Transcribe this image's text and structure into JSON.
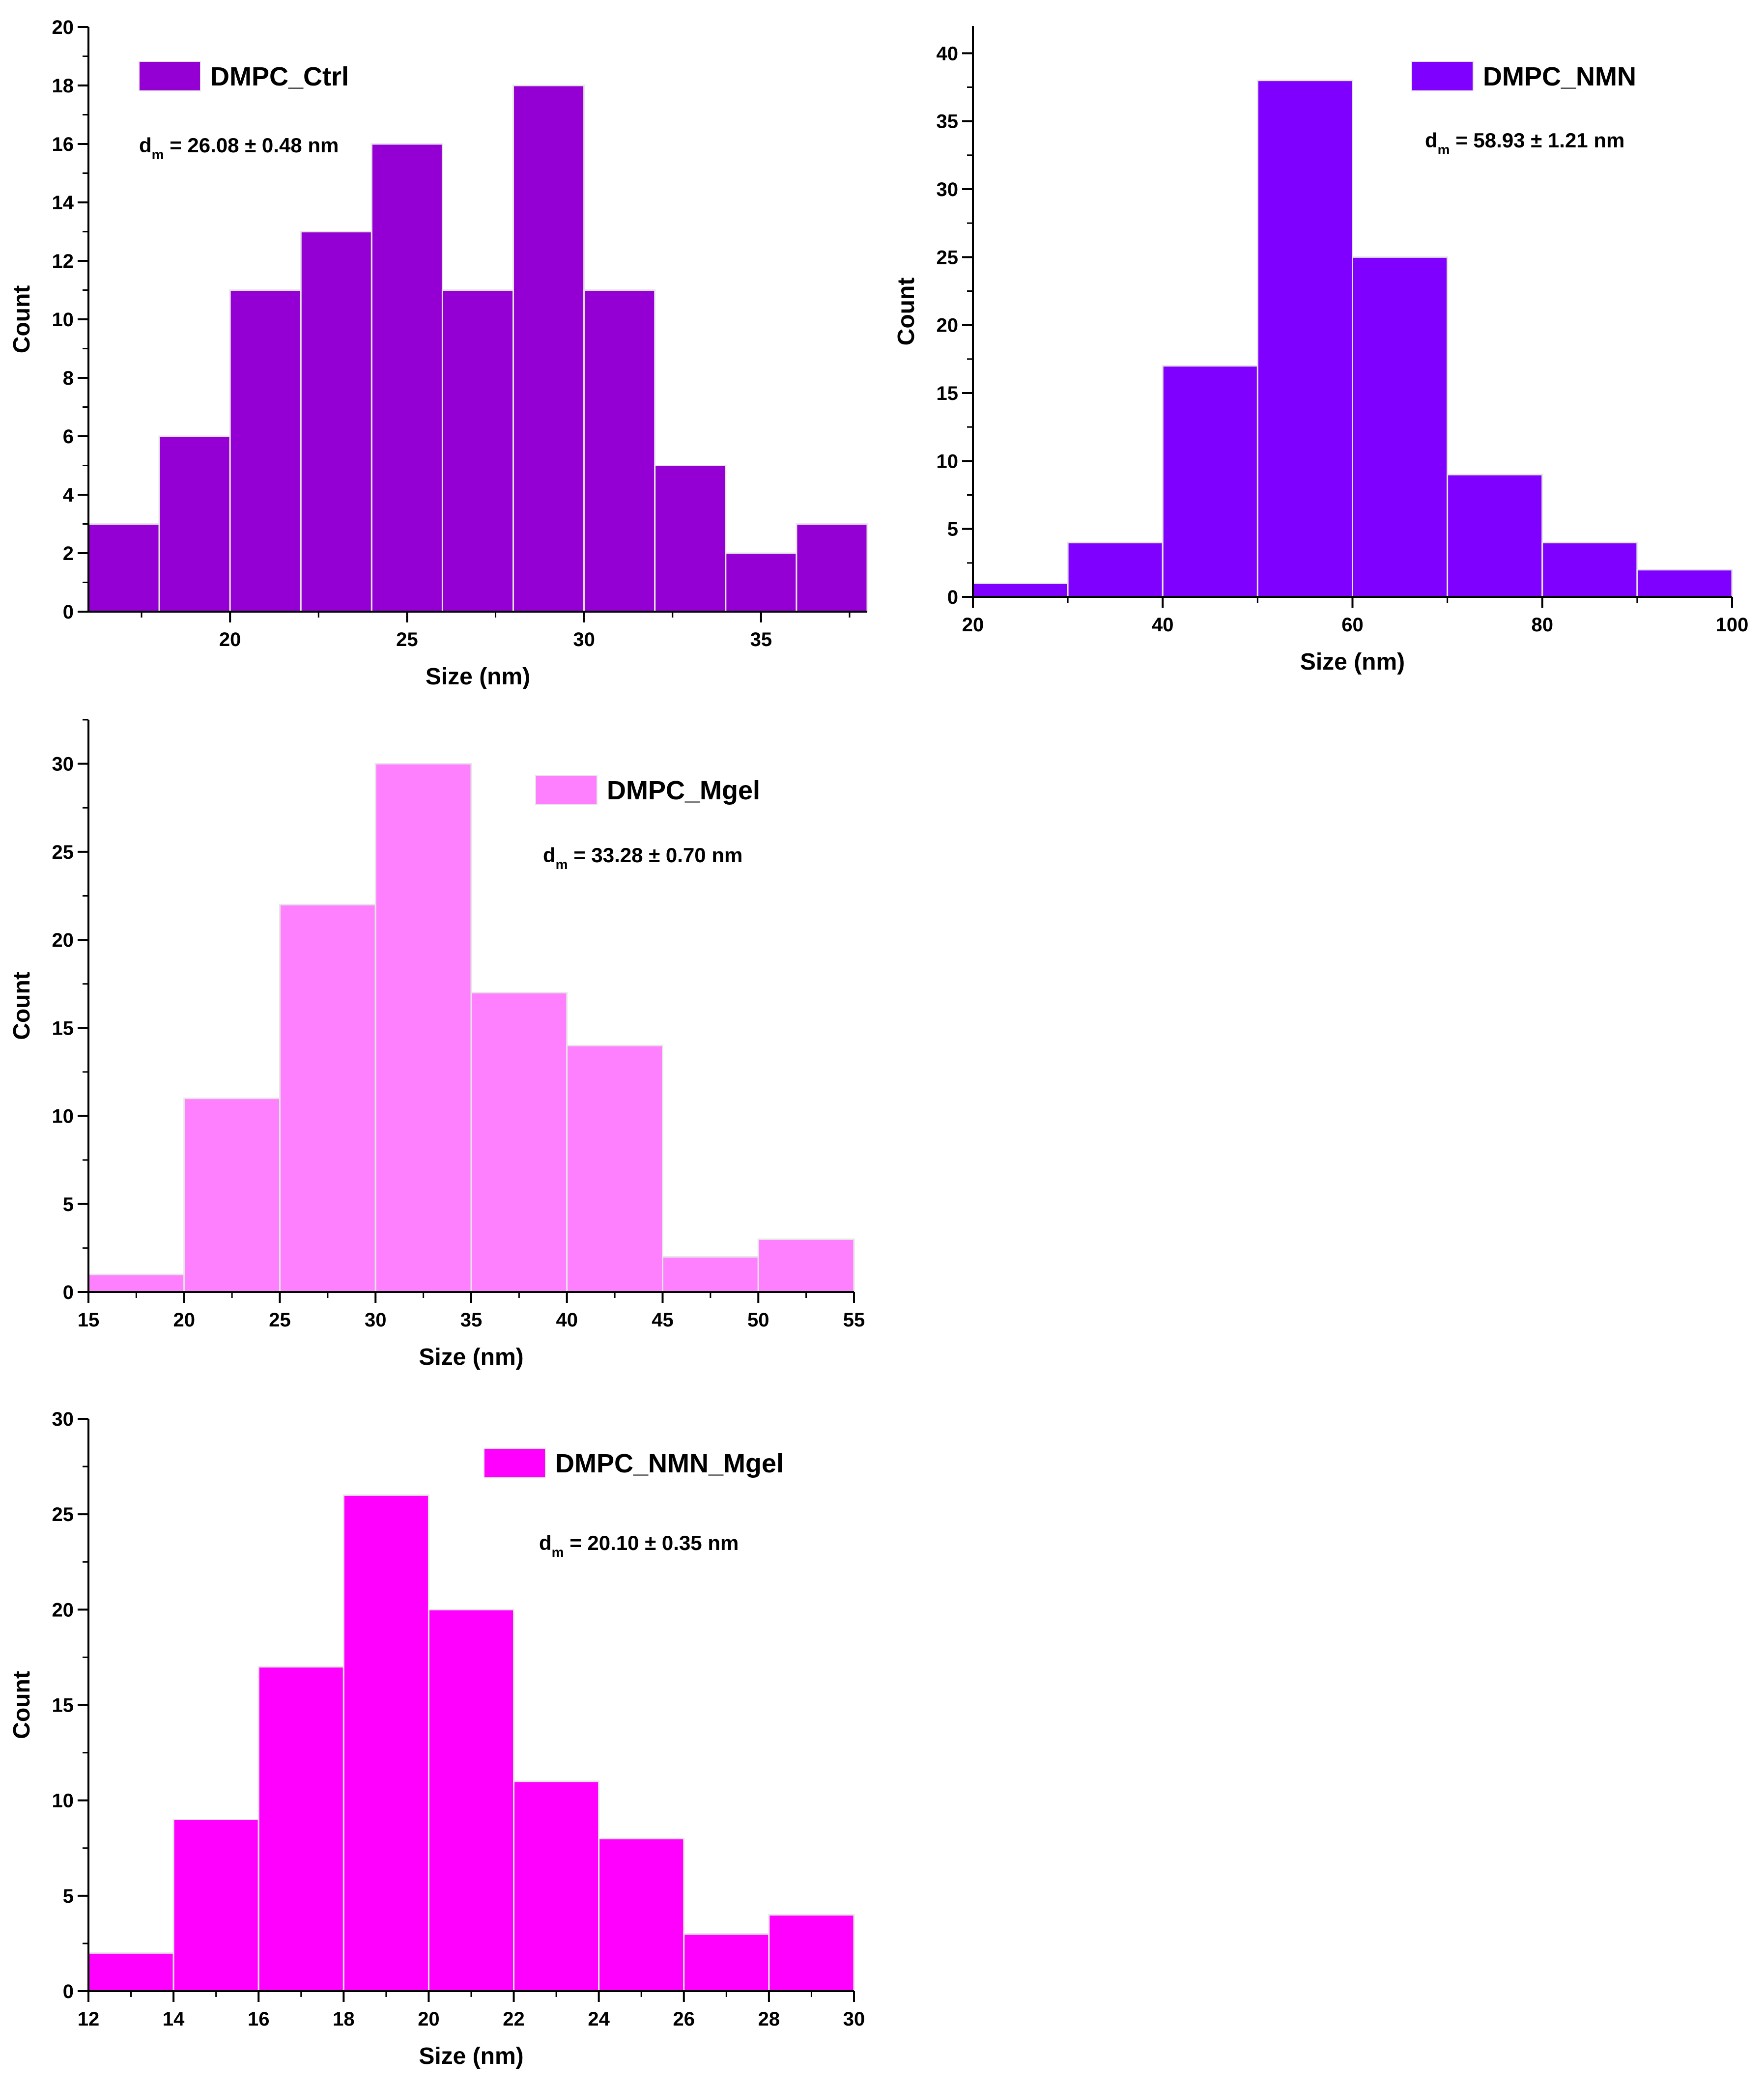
{
  "chart_data": [
    {
      "type": "bar",
      "subtype": "histogram",
      "legend": "DMPC_Ctrl",
      "stat": {
        "prefix": "d",
        "sub": "m",
        "text": " = 26.08 ± 0.48 nm"
      },
      "xlabel": "Size (nm)",
      "ylabel": "Count",
      "xlim": [
        16,
        38
      ],
      "ylim": [
        0,
        20
      ],
      "xticks": [
        20,
        25,
        30,
        35
      ],
      "yticks": [
        0,
        2,
        4,
        6,
        8,
        10,
        12,
        14,
        16,
        18,
        20
      ],
      "bin_edges": [
        16,
        18,
        20,
        22,
        24,
        26,
        28,
        30,
        32,
        34,
        36,
        38
      ],
      "values": [
        3,
        6,
        11,
        13,
        16,
        11,
        18,
        11,
        5,
        2,
        3
      ],
      "color": "#9400D3",
      "legend_position": "top-left"
    },
    {
      "type": "bar",
      "subtype": "histogram",
      "legend": "DMPC_NMN",
      "stat": {
        "prefix": "d",
        "sub": "m",
        "text": " = 58.93 ± 1.21 nm"
      },
      "xlabel": "Size (nm)",
      "ylabel": "Count",
      "xlim": [
        20,
        100
      ],
      "ylim": [
        0,
        42
      ],
      "xticks": [
        20,
        40,
        60,
        80,
        100
      ],
      "yticks": [
        0,
        5,
        10,
        15,
        20,
        25,
        30,
        35,
        40
      ],
      "bin_edges": [
        20,
        30,
        40,
        50,
        60,
        70,
        80,
        90,
        100
      ],
      "values": [
        1,
        4,
        17,
        38,
        25,
        9,
        4,
        2
      ],
      "color": "#8000FF",
      "legend_position": "top-right"
    },
    {
      "type": "bar",
      "subtype": "histogram",
      "legend": "DMPC_Mgel",
      "stat": {
        "prefix": "d",
        "sub": "m",
        "text": " = 33.28 ± 0.70 nm"
      },
      "xlabel": "Size (nm)",
      "ylabel": "Count",
      "xlim": [
        15,
        55
      ],
      "ylim": [
        0,
        32.5
      ],
      "xticks": [
        15,
        20,
        25,
        30,
        35,
        40,
        45,
        50,
        55
      ],
      "yticks": [
        0,
        5,
        10,
        15,
        20,
        25,
        30
      ],
      "bin_edges": [
        15,
        20,
        25,
        30,
        35,
        40,
        45,
        50,
        55
      ],
      "values": [
        1,
        11,
        22,
        30,
        17,
        14,
        2,
        3
      ],
      "color": "#FF80FF",
      "legend_position": "top-right"
    },
    {
      "type": "bar",
      "subtype": "histogram",
      "legend": "DMPC_NMN_Mgel",
      "stat": {
        "prefix": "d",
        "sub": "m",
        "text": " = 20.10 ± 0.35 nm"
      },
      "xlabel": "Size (nm)",
      "ylabel": "Count",
      "xlim": [
        12,
        30
      ],
      "ylim": [
        0,
        30
      ],
      "xticks": [
        12,
        14,
        16,
        18,
        20,
        22,
        24,
        26,
        28,
        30
      ],
      "yticks": [
        0,
        5,
        10,
        15,
        20,
        25,
        30
      ],
      "bin_edges": [
        12,
        14,
        16,
        18,
        20,
        22,
        24,
        26,
        28,
        30
      ],
      "values": [
        2,
        9,
        17,
        26,
        20,
        11,
        8,
        3,
        4
      ],
      "color": "#FF00FF",
      "legend_position": "top-right"
    }
  ]
}
